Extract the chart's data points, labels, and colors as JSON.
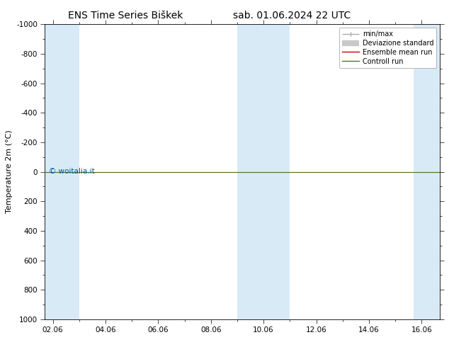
{
  "title_left": "ENS Time Series Biškek",
  "title_right": "sab. 01.06.2024 22 UTC",
  "ylabel": "Temperature 2m (°C)",
  "ylim_bottom": 1000,
  "ylim_top": -1000,
  "yticks": [
    -1000,
    -800,
    -600,
    -400,
    -200,
    0,
    200,
    400,
    600,
    800,
    1000
  ],
  "xtick_labels": [
    "02.06",
    "04.06",
    "06.06",
    "08.06",
    "10.06",
    "12.06",
    "14.06",
    "16.06"
  ],
  "xtick_positions": [
    0,
    2,
    4,
    6,
    8,
    10,
    12,
    14
  ],
  "xmin": -0.3,
  "xmax": 14.7,
  "shaded_bands": [
    {
      "xmin": -0.3,
      "xmax": 1.0
    },
    {
      "xmin": 7.0,
      "xmax": 9.0
    },
    {
      "xmin": 13.7,
      "xmax": 14.7
    }
  ],
  "hline_y": 0,
  "hline_color_green": "#4d7a1f",
  "hline_color_red": "#cc0000",
  "bg_color": "#ffffff",
  "plot_bg_color": "#ffffff",
  "band_color": "#d9eaf7",
  "watermark": "© woitalia.it",
  "watermark_color": "#0055aa",
  "legend_items": [
    {
      "label": "min/max",
      "color": "#aaaaaa",
      "lw": 1.0
    },
    {
      "label": "Deviazione standard",
      "color": "#c8c8c8",
      "lw": 6
    },
    {
      "label": "Ensemble mean run",
      "color": "#cc0000",
      "lw": 1.0
    },
    {
      "label": "Controll run",
      "color": "#4d7a1f",
      "lw": 1.0
    }
  ],
  "title_fontsize": 10,
  "axis_fontsize": 8,
  "tick_fontsize": 7.5,
  "legend_fontsize": 7
}
